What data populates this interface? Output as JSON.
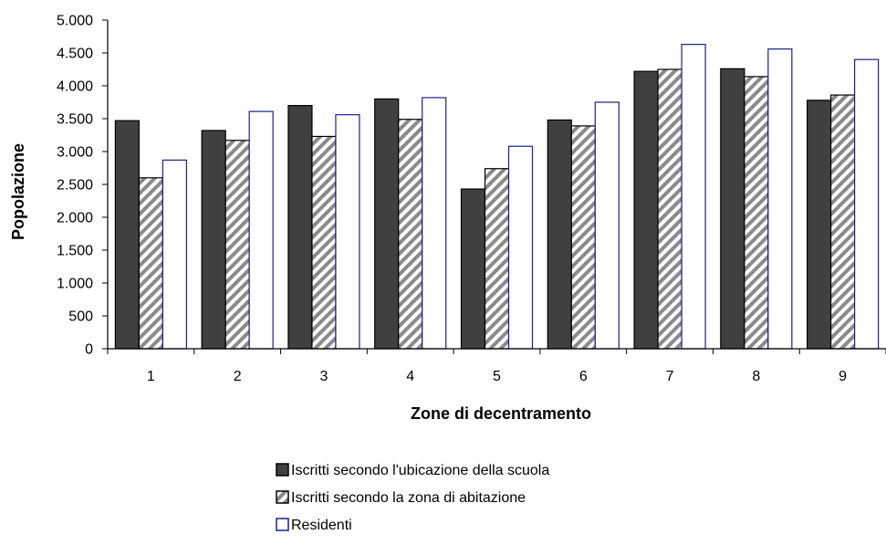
{
  "chart_data": {
    "type": "bar",
    "title": "",
    "xlabel": "Zone di decentramento",
    "ylabel": "Popolazione",
    "categories": [
      "1",
      "2",
      "3",
      "4",
      "5",
      "6",
      "7",
      "8",
      "9"
    ],
    "ylim": [
      0,
      5000
    ],
    "yticks": [
      0,
      500,
      1000,
      1500,
      2000,
      2500,
      3000,
      3500,
      4000,
      4500,
      5000
    ],
    "ytick_labels": [
      "0",
      "500",
      "1.000",
      "1.500",
      "2.000",
      "2.500",
      "3.000",
      "3.500",
      "4.000",
      "4.500",
      "5.000"
    ],
    "grid": false,
    "legend_position": "bottom",
    "series": [
      {
        "name": "Iscritti secondo l'ubicazione della scuola",
        "values": [
          3470,
          3320,
          3700,
          3800,
          2430,
          3480,
          4220,
          4260,
          3780
        ],
        "fill": "#404040",
        "stroke": "#000000",
        "pattern": "solid"
      },
      {
        "name": "Iscritti secondo la zona di abitazione",
        "values": [
          2600,
          3170,
          3230,
          3490,
          2740,
          3390,
          4250,
          4140,
          3860
        ],
        "fill": "#ffffff",
        "stroke": "#000000",
        "pattern": "diagonal-stripes"
      },
      {
        "name": "Residenti",
        "values": [
          2870,
          3610,
          3560,
          3820,
          3080,
          3750,
          4630,
          4560,
          4400
        ],
        "fill": "#ffffff",
        "stroke": "#1f1f8f",
        "pattern": "solid"
      }
    ]
  }
}
